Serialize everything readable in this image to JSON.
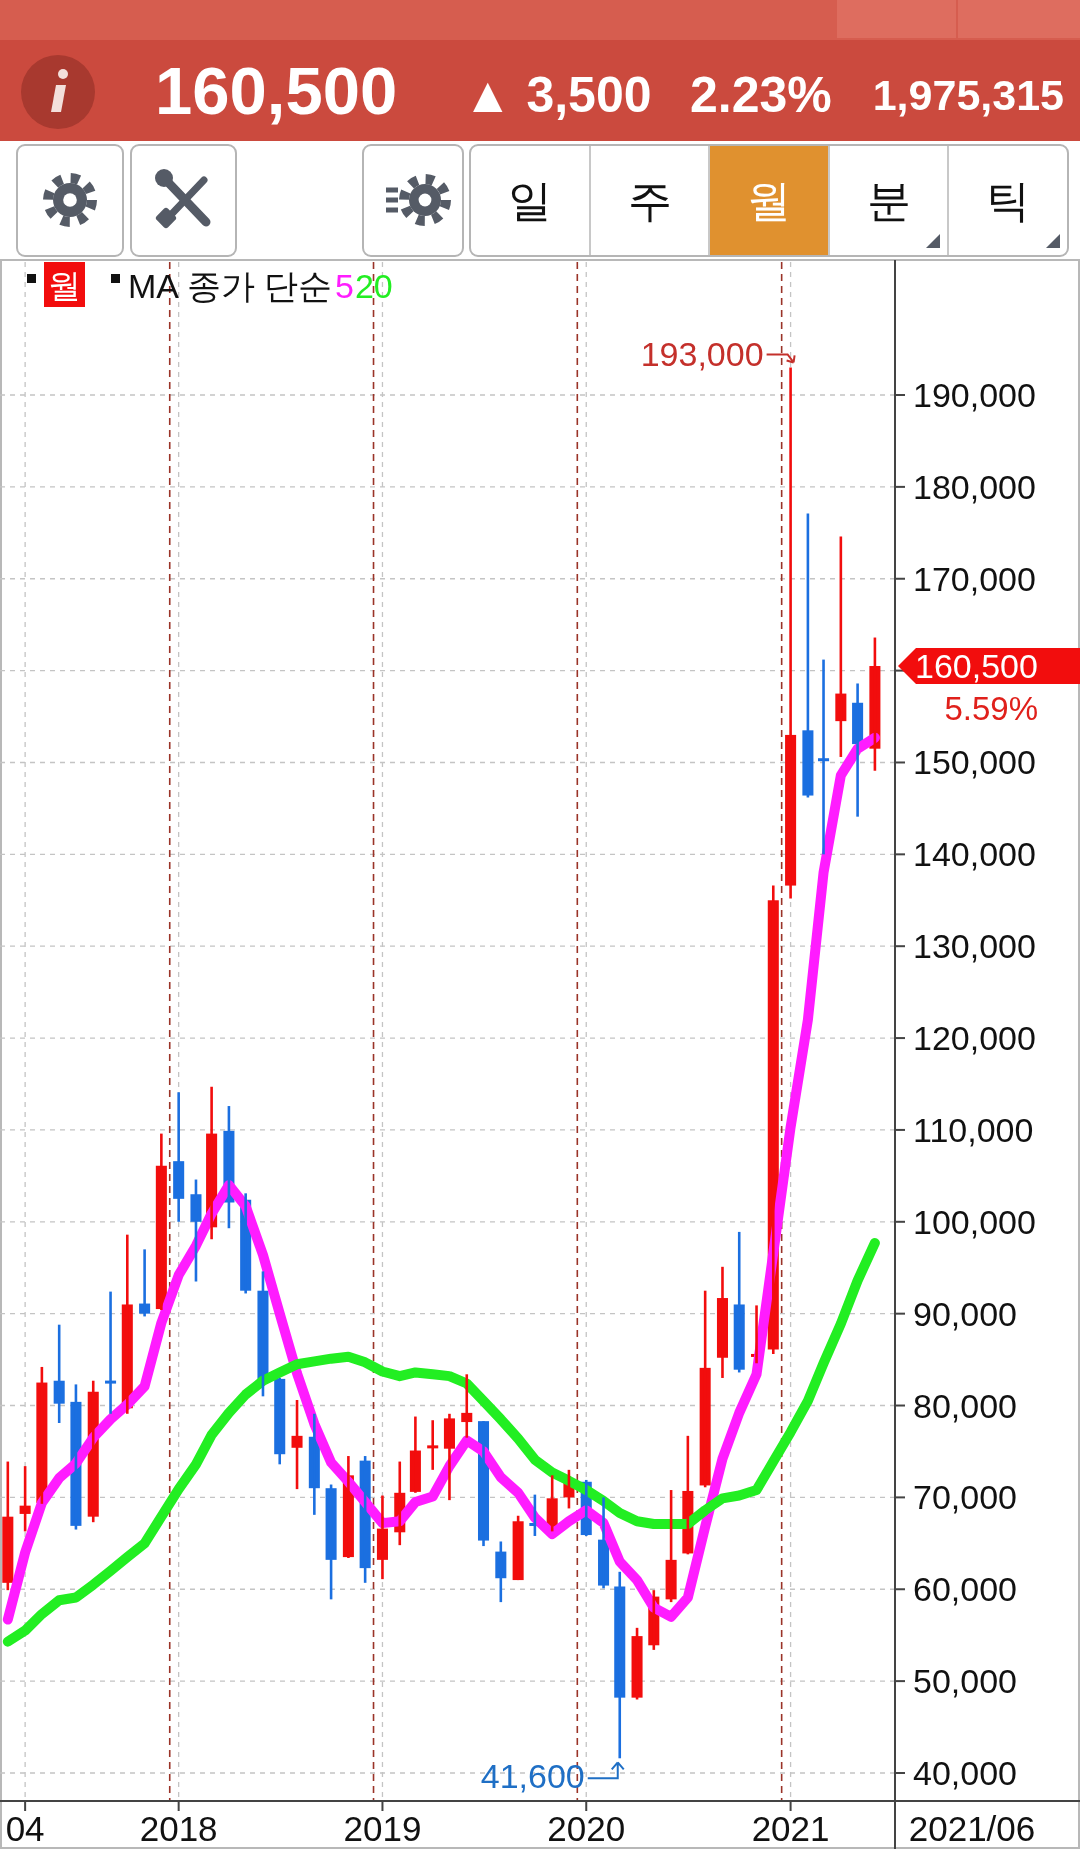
{
  "chart_data": {
    "type": "candlestick",
    "x": [
      "2017-03",
      "2017-04",
      "2017-05",
      "2017-06",
      "2017-07",
      "2017-08",
      "2017-09",
      "2017-10",
      "2017-11",
      "2017-12",
      "2018-01",
      "2018-02",
      "2018-03",
      "2018-04",
      "2018-05",
      "2018-06",
      "2018-07",
      "2018-08",
      "2018-09",
      "2018-10",
      "2018-11",
      "2018-12",
      "2019-01",
      "2019-02",
      "2019-03",
      "2019-04",
      "2019-05",
      "2019-06",
      "2019-07",
      "2019-08",
      "2019-09",
      "2019-10",
      "2019-11",
      "2019-12",
      "2020-01",
      "2020-02",
      "2020-03",
      "2020-04",
      "2020-05",
      "2020-06",
      "2020-07",
      "2020-08",
      "2020-09",
      "2020-10",
      "2020-11",
      "2020-12",
      "2021-01",
      "2021-02",
      "2021-03",
      "2021-04",
      "2021-05",
      "2021-06"
    ],
    "series": [
      {
        "name": "월",
        "ohlc": [
          [
            60700,
            73900,
            59900,
            67900
          ],
          [
            68200,
            73400,
            66300,
            69100
          ],
          [
            69400,
            84200,
            69300,
            82500
          ],
          [
            82700,
            88800,
            78100,
            80200
          ],
          [
            80400,
            82300,
            66500,
            66900
          ],
          [
            67900,
            82700,
            67300,
            81500
          ],
          [
            82700,
            92400,
            79100,
            82400
          ],
          [
            79700,
            98600,
            79100,
            91000
          ],
          [
            91100,
            97000,
            89700,
            90000
          ],
          [
            90500,
            109600,
            90400,
            106100
          ],
          [
            106600,
            114100,
            100000,
            102500
          ],
          [
            103000,
            104600,
            93500,
            100000
          ],
          [
            99400,
            114700,
            98100,
            109600
          ],
          [
            109900,
            112600,
            99300,
            102100
          ],
          [
            102400,
            103100,
            92200,
            92500
          ],
          [
            92500,
            94600,
            81000,
            82900
          ],
          [
            82900,
            83000,
            73600,
            74700
          ],
          [
            75400,
            80600,
            70900,
            76700
          ],
          [
            76600,
            79100,
            68100,
            71000
          ],
          [
            71000,
            71400,
            58900,
            63200
          ],
          [
            63500,
            74500,
            63400,
            72400
          ],
          [
            74000,
            74500,
            60700,
            62300
          ],
          [
            63200,
            70200,
            61100,
            66600
          ],
          [
            66200,
            73900,
            64800,
            70500
          ],
          [
            70600,
            78800,
            70500,
            75100
          ],
          [
            75400,
            78400,
            73000,
            75600
          ],
          [
            75300,
            79100,
            69700,
            78600
          ],
          [
            78200,
            83400,
            76500,
            79200
          ],
          [
            78300,
            78300,
            64700,
            65300
          ],
          [
            64100,
            65200,
            58600,
            61200
          ],
          [
            61000,
            68000,
            61000,
            67400
          ],
          [
            67100,
            70300,
            65800,
            67000
          ],
          [
            66800,
            72400,
            66300,
            69900
          ],
          [
            70000,
            73000,
            68800,
            72000
          ],
          [
            71700,
            71900,
            65800,
            65900
          ],
          [
            65400,
            70000,
            60100,
            60400
          ],
          [
            60300,
            61900,
            41600,
            48200
          ],
          [
            48200,
            55800,
            48000,
            54900
          ],
          [
            53900,
            59900,
            53400,
            59200
          ],
          [
            58900,
            70800,
            58600,
            63200
          ],
          [
            63900,
            76700,
            63800,
            70700
          ],
          [
            71300,
            92500,
            71100,
            84100
          ],
          [
            85200,
            95100,
            83000,
            91700
          ],
          [
            91000,
            98900,
            83600,
            83900
          ],
          [
            85300,
            90900,
            84600,
            85600
          ],
          [
            86100,
            136600,
            85600,
            135000
          ],
          [
            136600,
            193000,
            135200,
            153000
          ],
          [
            153500,
            177100,
            146200,
            146400
          ],
          [
            150400,
            161200,
            140000,
            150200
          ],
          [
            154500,
            174600,
            150600,
            157500
          ],
          [
            156500,
            158600,
            144100,
            152000
          ],
          [
            151500,
            163600,
            149100,
            160500
          ]
        ],
        "colors": [
          "#f20d0d",
          "#f20d0d",
          "#f20d0d",
          "#1b6fe0",
          "#1b6fe0",
          "#f20d0d",
          "#1b6fe0",
          "#f20d0d",
          "#1b6fe0",
          "#f20d0d",
          "#1b6fe0",
          "#1b6fe0",
          "#f20d0d",
          "#1b6fe0",
          "#1b6fe0",
          "#1b6fe0",
          "#1b6fe0",
          "#f20d0d",
          "#1b6fe0",
          "#1b6fe0",
          "#f20d0d",
          "#1b6fe0",
          "#f20d0d",
          "#f20d0d",
          "#f20d0d",
          "#f20d0d",
          "#f20d0d",
          "#f20d0d",
          "#1b6fe0",
          "#1b6fe0",
          "#f20d0d",
          "#1b6fe0",
          "#f20d0d",
          "#f20d0d",
          "#1b6fe0",
          "#1b6fe0",
          "#1b6fe0",
          "#f20d0d",
          "#f20d0d",
          "#f20d0d",
          "#f20d0d",
          "#f20d0d",
          "#f20d0d",
          "#1b6fe0",
          "#f20d0d",
          "#f20d0d",
          "#f20d0d",
          "#1b6fe0",
          "#1b6fe0",
          "#f20d0d",
          "#1b6fe0",
          "#f20d0d"
        ]
      },
      {
        "type": "line",
        "name": "5",
        "color": "#ff1cff",
        "values": [
          56700,
          64000,
          69400,
          72100,
          73700,
          76500,
          78500,
          80100,
          82100,
          89000,
          94200,
          97400,
          100900,
          104000,
          101700,
          96400,
          90000,
          83500,
          78000,
          73800,
          71700,
          69500,
          67200,
          67400,
          69500,
          70100,
          73400,
          76200,
          75000,
          72200,
          70500,
          67800,
          66000,
          67400,
          68600,
          67200,
          63000,
          61000,
          58000,
          57000,
          59100,
          66800,
          74200,
          79200,
          83400,
          96600,
          110300,
          122000,
          138000,
          148600,
          151500,
          152700
        ]
      },
      {
        "type": "line",
        "name": "20",
        "color": "#22ee22",
        "values": [
          54300,
          55500,
          57300,
          58800,
          59100,
          60500,
          62000,
          63500,
          65000,
          67900,
          70900,
          73600,
          76800,
          79200,
          81200,
          82700,
          83600,
          84500,
          84800,
          85100,
          85300,
          84700,
          83700,
          83200,
          83600,
          83400,
          83200,
          82400,
          80500,
          78500,
          76400,
          74100,
          72700,
          71800,
          70800,
          69600,
          68300,
          67400,
          67100,
          67100,
          67100,
          68600,
          69900,
          70200,
          70800,
          73900,
          77100,
          80500,
          84600,
          88900,
          93600,
          97700
        ]
      }
    ],
    "legend_title": "MA 종가 단순",
    "legend": "top left",
    "xlim": [
      "2017-02-15",
      "2021-07-07"
    ],
    "xticks": [
      {
        "value": "2017-04",
        "label": "04"
      },
      {
        "value": "2018-01",
        "label": "2018"
      },
      {
        "value": "2019-01",
        "label": "2019"
      },
      {
        "value": "2020-01",
        "label": "2020"
      },
      {
        "value": "2021-01",
        "label": "2021"
      }
    ],
    "ylim": [
      36950,
      204480
    ],
    "yticks": [
      {
        "value": 40000,
        "label": "40,000"
      },
      {
        "value": 50000,
        "label": "50,000"
      },
      {
        "value": 60000,
        "label": "60,000"
      },
      {
        "value": 70000,
        "label": "70,000"
      },
      {
        "value": 80000,
        "label": "80,000"
      },
      {
        "value": 90000,
        "label": "90,000"
      },
      {
        "value": 100000,
        "label": "100,000"
      },
      {
        "value": 110000,
        "label": "110,000"
      },
      {
        "value": 120000,
        "label": "120,000"
      },
      {
        "value": 130000,
        "label": "130,000"
      },
      {
        "value": 140000,
        "label": "140,000"
      },
      {
        "value": 150000,
        "label": "150,000"
      },
      {
        "value": 160000,
        "label": null
      },
      {
        "value": 170000,
        "label": "170,000"
      },
      {
        "value": 180000,
        "label": "180,000"
      },
      {
        "value": 190000,
        "label": "190,000"
      }
    ],
    "grid": true,
    "ref_lines": [
      {
        "axis": "x",
        "value": "2017-12-16",
        "color": "#9a3328",
        "line_style": "dashed"
      },
      {
        "axis": "x",
        "value": "2018-12-16",
        "color": "#9a3328",
        "line_style": "dashed"
      },
      {
        "axis": "x",
        "value": "2019-12-16",
        "color": "#9a3328",
        "line_style": "dashed"
      },
      {
        "axis": "x",
        "value": "2020-12-16",
        "color": "#9a3328",
        "line_style": "dashed"
      }
    ],
    "annotations": [
      "160,500",
      "▲ 3,500",
      "2.23%",
      "1,975,315",
      "일",
      "주",
      "월",
      "분",
      "틱",
      {
        "text": "193,000",
        "x": "2021-01",
        "y": 193000
      },
      {
        "text": "41,600",
        "x": "2020-03",
        "y": 41600
      },
      {
        "text": "160,500",
        "x": "2021-06",
        "y": 160500
      },
      "5.59%",
      "2021/06"
    ]
  }
}
